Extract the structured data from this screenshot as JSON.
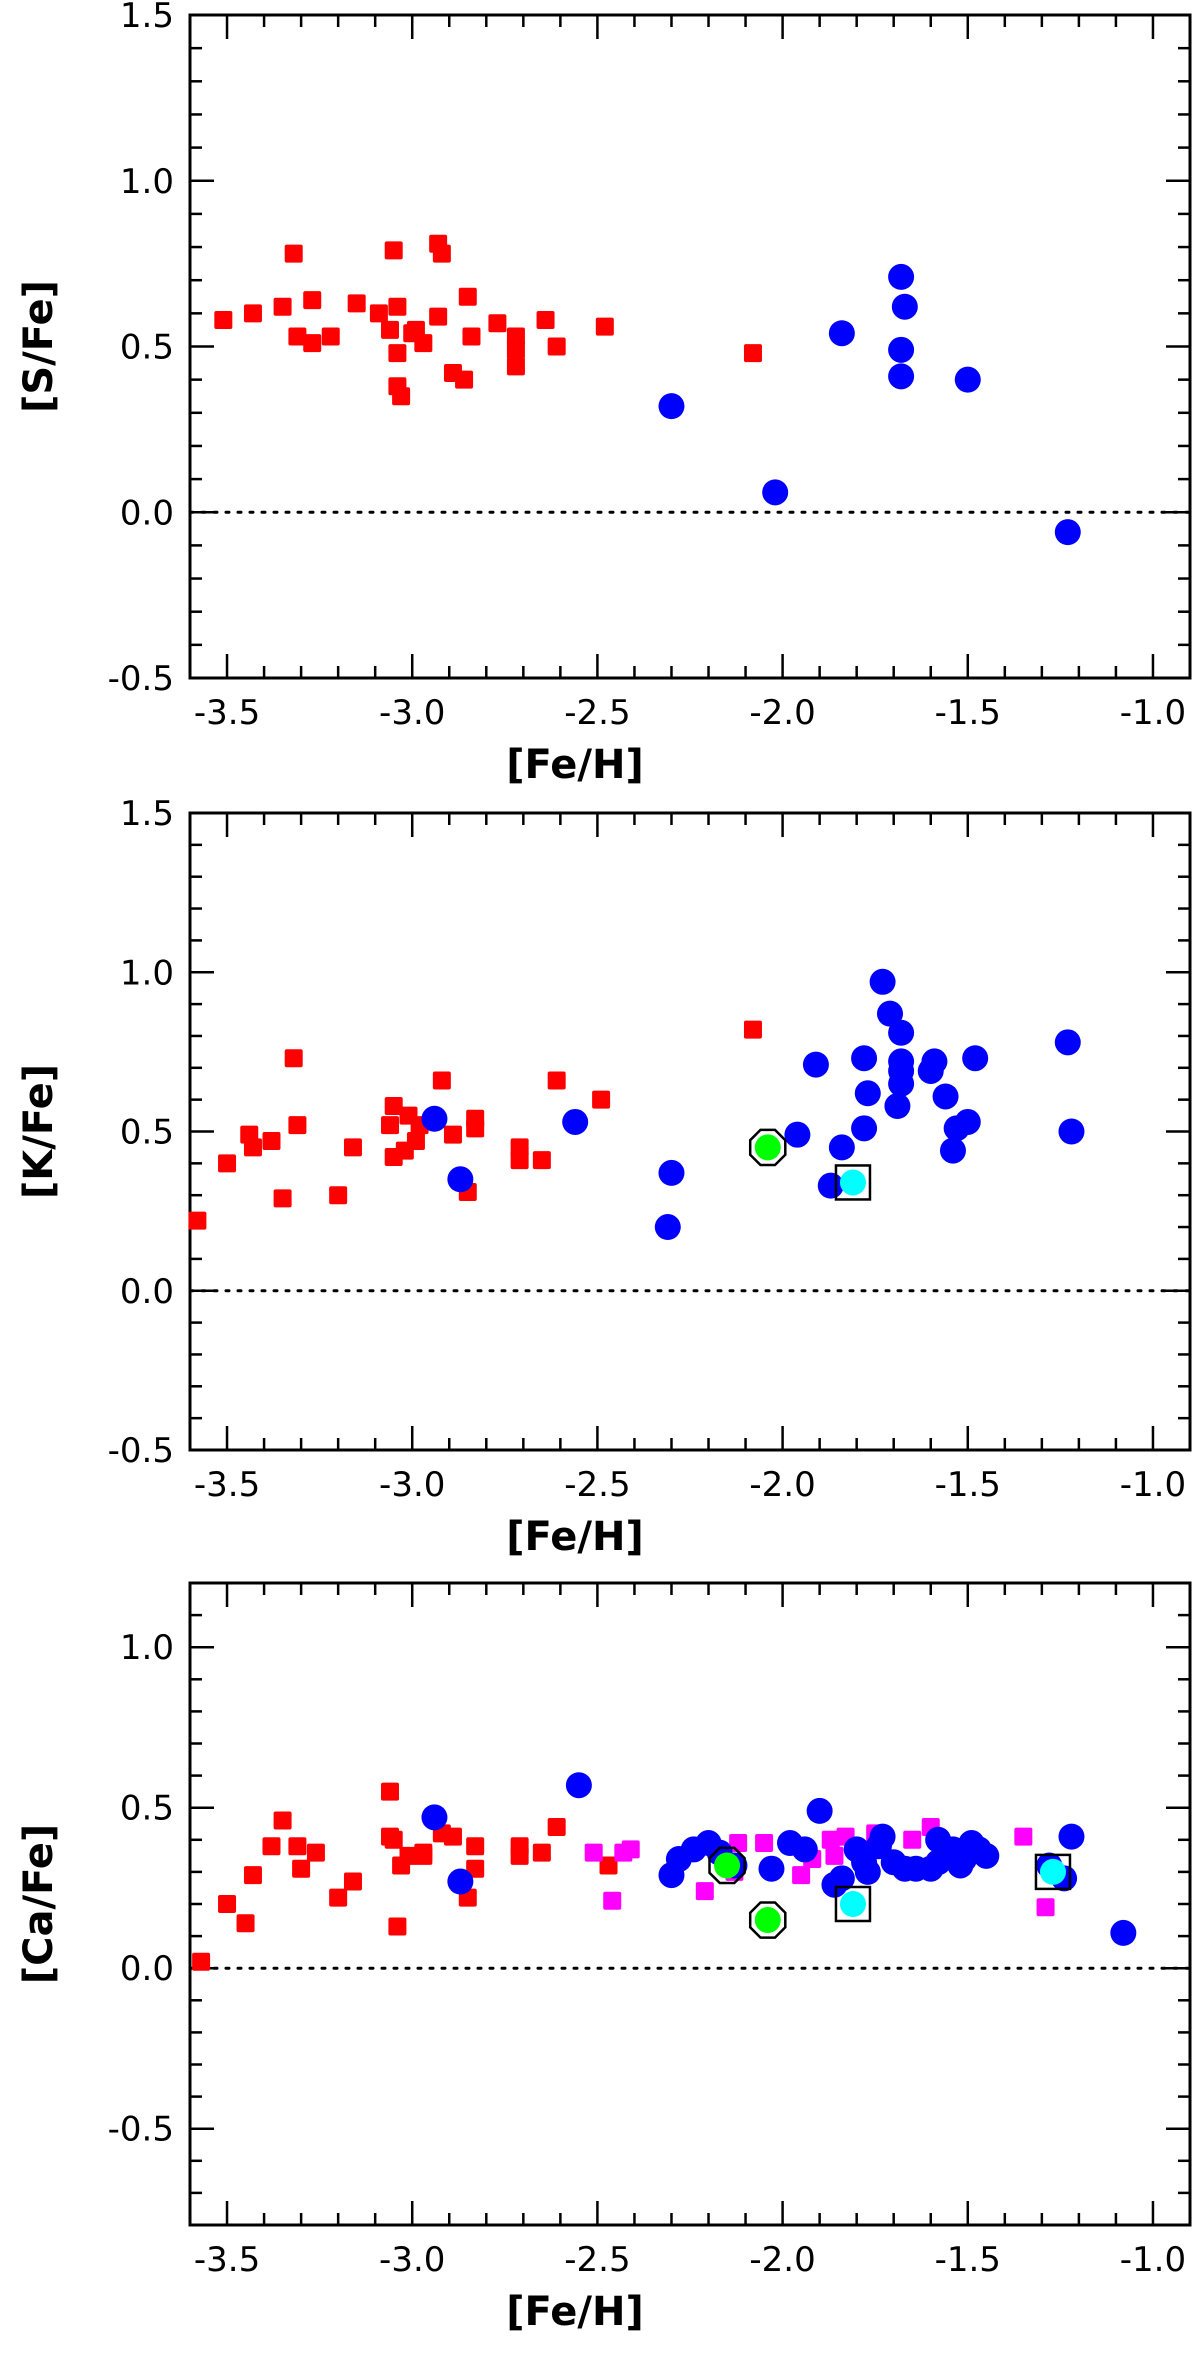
{
  "chart_data": [
    {
      "type": "scatter",
      "xlabel": "[Fe/H]",
      "ylabel": "[S/Fe]",
      "xlim": [
        -3.6,
        -0.9
      ],
      "ylim": [
        -0.5,
        1.5
      ],
      "xticks": [
        "-3.5",
        "-3.0",
        "-2.5",
        "-2.0",
        "-1.5",
        "-1.0"
      ],
      "xtick_values": [
        -3.5,
        -3.0,
        -2.5,
        -2.0,
        -1.5,
        -1.0
      ],
      "yticks": [
        "-0.5",
        "0.0",
        "0.5",
        "1.0",
        "1.5"
      ],
      "ytick_values": [
        -0.5,
        0.0,
        0.5,
        1.0,
        1.5
      ],
      "reference_line": 0.0,
      "series": [
        {
          "marker": "square",
          "color": "#ff0000",
          "points": [
            [
              -3.51,
              0.58
            ],
            [
              -3.43,
              0.6
            ],
            [
              -3.35,
              0.62
            ],
            [
              -3.32,
              0.78
            ],
            [
              -3.31,
              0.53
            ],
            [
              -3.27,
              0.64
            ],
            [
              -3.27,
              0.51
            ],
            [
              -3.22,
              0.53
            ],
            [
              -3.15,
              0.63
            ],
            [
              -3.09,
              0.6
            ],
            [
              -3.06,
              0.55
            ],
            [
              -3.05,
              0.79
            ],
            [
              -3.04,
              0.62
            ],
            [
              -3.04,
              0.48
            ],
            [
              -3.04,
              0.38
            ],
            [
              -3.03,
              0.35
            ],
            [
              -3.0,
              0.54
            ],
            [
              -2.99,
              0.55
            ],
            [
              -2.97,
              0.51
            ],
            [
              -2.93,
              0.81
            ],
            [
              -2.92,
              0.78
            ],
            [
              -2.93,
              0.59
            ],
            [
              -2.89,
              0.42
            ],
            [
              -2.86,
              0.4
            ],
            [
              -2.85,
              0.65
            ],
            [
              -2.84,
              0.53
            ],
            [
              -2.77,
              0.57
            ],
            [
              -2.72,
              0.53
            ],
            [
              -2.72,
              0.49
            ],
            [
              -2.72,
              0.44
            ],
            [
              -2.64,
              0.58
            ],
            [
              -2.61,
              0.5
            ],
            [
              -2.48,
              0.56
            ],
            [
              -2.08,
              0.48
            ]
          ]
        },
        {
          "marker": "circle",
          "color": "#0000ff",
          "points": [
            [
              -2.3,
              0.32
            ],
            [
              -2.02,
              0.06
            ],
            [
              -1.84,
              0.54
            ],
            [
              -1.68,
              0.71
            ],
            [
              -1.67,
              0.62
            ],
            [
              -1.68,
              0.49
            ],
            [
              -1.68,
              0.41
            ],
            [
              -1.5,
              0.4
            ],
            [
              -1.23,
              -0.06
            ]
          ]
        }
      ]
    },
    {
      "type": "scatter",
      "xlabel": "[Fe/H]",
      "ylabel": "[K/Fe]",
      "xlim": [
        -3.6,
        -0.9
      ],
      "ylim": [
        -0.5,
        1.5
      ],
      "xticks": [
        "-3.5",
        "-3.0",
        "-2.5",
        "-2.0",
        "-1.5",
        "-1.0"
      ],
      "xtick_values": [
        -3.5,
        -3.0,
        -2.5,
        -2.0,
        -1.5,
        -1.0
      ],
      "yticks": [
        "-0.5",
        "0.0",
        "0.5",
        "1.0",
        "1.5"
      ],
      "ytick_values": [
        -0.5,
        0.0,
        0.5,
        1.0,
        1.5
      ],
      "reference_line": 0.0,
      "series": [
        {
          "marker": "square",
          "color": "#ff0000",
          "points": [
            [
              -3.58,
              0.22
            ],
            [
              -3.5,
              0.4
            ],
            [
              -3.44,
              0.49
            ],
            [
              -3.43,
              0.45
            ],
            [
              -3.38,
              0.47
            ],
            [
              -3.35,
              0.29
            ],
            [
              -3.32,
              0.73
            ],
            [
              -3.31,
              0.52
            ],
            [
              -3.2,
              0.3
            ],
            [
              -3.16,
              0.45
            ],
            [
              -3.06,
              0.52
            ],
            [
              -3.05,
              0.58
            ],
            [
              -3.05,
              0.42
            ],
            [
              -3.02,
              0.44
            ],
            [
              -3.01,
              0.55
            ],
            [
              -2.98,
              0.52
            ],
            [
              -2.99,
              0.47
            ],
            [
              -2.92,
              0.66
            ],
            [
              -2.89,
              0.49
            ],
            [
              -2.85,
              0.31
            ],
            [
              -2.83,
              0.54
            ],
            [
              -2.83,
              0.51
            ],
            [
              -2.71,
              0.45
            ],
            [
              -2.71,
              0.41
            ],
            [
              -2.65,
              0.41
            ],
            [
              -2.61,
              0.66
            ],
            [
              -2.49,
              0.6
            ],
            [
              -2.08,
              0.82
            ]
          ]
        },
        {
          "marker": "circle",
          "color": "#0000ff",
          "points": [
            [
              -2.94,
              0.54
            ],
            [
              -2.87,
              0.35
            ],
            [
              -2.56,
              0.53
            ],
            [
              -2.31,
              0.2
            ],
            [
              -2.3,
              0.37
            ],
            [
              -1.96,
              0.49
            ],
            [
              -1.91,
              0.71
            ],
            [
              -1.87,
              0.33
            ],
            [
              -1.84,
              0.45
            ],
            [
              -1.78,
              0.73
            ],
            [
              -1.77,
              0.62
            ],
            [
              -1.78,
              0.51
            ],
            [
              -1.73,
              0.97
            ],
            [
              -1.71,
              0.87
            ],
            [
              -1.68,
              0.81
            ],
            [
              -1.68,
              0.72
            ],
            [
              -1.68,
              0.69
            ],
            [
              -1.68,
              0.65
            ],
            [
              -1.69,
              0.58
            ],
            [
              -1.6,
              0.69
            ],
            [
              -1.59,
              0.72
            ],
            [
              -1.56,
              0.61
            ],
            [
              -1.54,
              0.44
            ],
            [
              -1.53,
              0.51
            ],
            [
              -1.5,
              0.53
            ],
            [
              -1.48,
              0.73
            ],
            [
              -1.23,
              0.78
            ],
            [
              -1.22,
              0.5
            ]
          ]
        },
        {
          "marker": "circle",
          "color": "#00ff00",
          "outline": "octagon",
          "points": [
            [
              -2.04,
              0.45
            ]
          ]
        },
        {
          "marker": "circle",
          "color": "#00ffff",
          "outline": "square",
          "points": [
            [
              -1.81,
              0.34
            ]
          ]
        }
      ]
    },
    {
      "type": "scatter",
      "xlabel": "[Fe/H]",
      "ylabel": "[Ca/Fe]",
      "xlim": [
        -3.6,
        -0.9
      ],
      "ylim": [
        -0.8,
        1.2
      ],
      "xticks": [
        "-3.5",
        "-3.0",
        "-2.5",
        "-2.0",
        "-1.5",
        "-1.0"
      ],
      "xtick_values": [
        -3.5,
        -3.0,
        -2.5,
        -2.0,
        -1.5,
        -1.0
      ],
      "yticks": [
        "-0.5",
        "0.0",
        "0.5",
        "1.0"
      ],
      "ytick_values": [
        -0.5,
        0.0,
        0.5,
        1.0
      ],
      "reference_line": 0.0,
      "series": [
        {
          "marker": "square",
          "color": "#ff0000",
          "points": [
            [
              -3.57,
              0.02
            ],
            [
              -3.5,
              0.2
            ],
            [
              -3.45,
              0.14
            ],
            [
              -3.43,
              0.29
            ],
            [
              -3.38,
              0.38
            ],
            [
              -3.35,
              0.46
            ],
            [
              -3.31,
              0.38
            ],
            [
              -3.3,
              0.31
            ],
            [
              -3.26,
              0.36
            ],
            [
              -3.2,
              0.22
            ],
            [
              -3.16,
              0.27
            ],
            [
              -3.06,
              0.55
            ],
            [
              -3.06,
              0.41
            ],
            [
              -3.05,
              0.4
            ],
            [
              -3.04,
              0.13
            ],
            [
              -3.03,
              0.32
            ],
            [
              -3.01,
              0.35
            ],
            [
              -2.97,
              0.35
            ],
            [
              -2.97,
              0.36
            ],
            [
              -2.92,
              0.42
            ],
            [
              -2.89,
              0.41
            ],
            [
              -2.85,
              0.22
            ],
            [
              -2.83,
              0.38
            ],
            [
              -2.83,
              0.31
            ],
            [
              -2.71,
              0.38
            ],
            [
              -2.71,
              0.35
            ],
            [
              -2.65,
              0.36
            ],
            [
              -2.61,
              0.44
            ],
            [
              -2.47,
              0.32
            ]
          ]
        },
        {
          "marker": "square",
          "color": "#ff00ff",
          "points": [
            [
              -2.51,
              0.36
            ],
            [
              -2.46,
              0.21
            ],
            [
              -2.43,
              0.36
            ],
            [
              -2.41,
              0.37
            ],
            [
              -2.21,
              0.24
            ],
            [
              -2.13,
              0.3
            ],
            [
              -2.12,
              0.39
            ],
            [
              -2.05,
              0.39
            ],
            [
              -1.95,
              0.29
            ],
            [
              -1.92,
              0.34
            ],
            [
              -1.87,
              0.4
            ],
            [
              -1.86,
              0.35
            ],
            [
              -1.83,
              0.41
            ],
            [
              -1.75,
              0.42
            ],
            [
              -1.65,
              0.4
            ],
            [
              -1.6,
              0.44
            ],
            [
              -1.35,
              0.41
            ],
            [
              -1.29,
              0.19
            ]
          ]
        },
        {
          "marker": "circle",
          "color": "#0000ff",
          "points": [
            [
              -2.94,
              0.47
            ],
            [
              -2.87,
              0.27
            ],
            [
              -2.55,
              0.57
            ],
            [
              -2.3,
              0.29
            ],
            [
              -2.28,
              0.34
            ],
            [
              -2.24,
              0.37
            ],
            [
              -2.2,
              0.39
            ],
            [
              -2.17,
              0.36
            ],
            [
              -2.13,
              0.32
            ],
            [
              -2.03,
              0.31
            ],
            [
              -1.98,
              0.39
            ],
            [
              -1.94,
              0.37
            ],
            [
              -1.9,
              0.49
            ],
            [
              -1.86,
              0.26
            ],
            [
              -1.84,
              0.28
            ],
            [
              -1.8,
              0.37
            ],
            [
              -1.78,
              0.33
            ],
            [
              -1.77,
              0.3
            ],
            [
              -1.74,
              0.38
            ],
            [
              -1.73,
              0.41
            ],
            [
              -1.7,
              0.33
            ],
            [
              -1.67,
              0.31
            ],
            [
              -1.64,
              0.31
            ],
            [
              -1.6,
              0.31
            ],
            [
              -1.58,
              0.33
            ],
            [
              -1.58,
              0.4
            ],
            [
              -1.55,
              0.35
            ],
            [
              -1.54,
              0.37
            ],
            [
              -1.52,
              0.32
            ],
            [
              -1.51,
              0.34
            ],
            [
              -1.49,
              0.39
            ],
            [
              -1.47,
              0.37
            ],
            [
              -1.45,
              0.35
            ],
            [
              -1.28,
              0.32
            ],
            [
              -1.24,
              0.28
            ],
            [
              -1.22,
              0.41
            ],
            [
              -1.08,
              0.11
            ]
          ]
        },
        {
          "marker": "circle",
          "color": "#00ff00",
          "outline": "octagon",
          "points": [
            [
              -2.15,
              0.32
            ],
            [
              -2.04,
              0.15
            ]
          ]
        },
        {
          "marker": "circle",
          "color": "#00ffff",
          "outline": "square",
          "points": [
            [
              -1.81,
              0.2
            ],
            [
              -1.27,
              0.3
            ]
          ]
        }
      ]
    }
  ]
}
